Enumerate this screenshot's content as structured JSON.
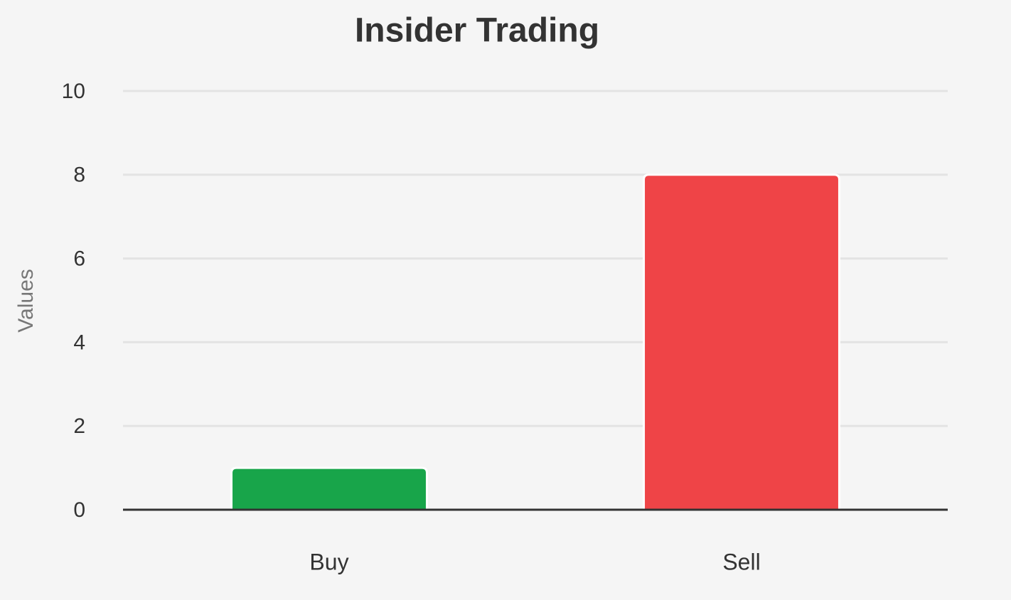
{
  "chart_data": {
    "type": "bar",
    "title": "Insider Trading",
    "y_label": "Values",
    "categories": [
      "Buy",
      "Sell"
    ],
    "values": [
      1,
      8
    ],
    "colors": [
      "#18a54a",
      "#ef4447"
    ],
    "ylim": [
      0,
      10
    ],
    "yticks": [
      0,
      2,
      4,
      6,
      8,
      10
    ],
    "grid": true
  }
}
